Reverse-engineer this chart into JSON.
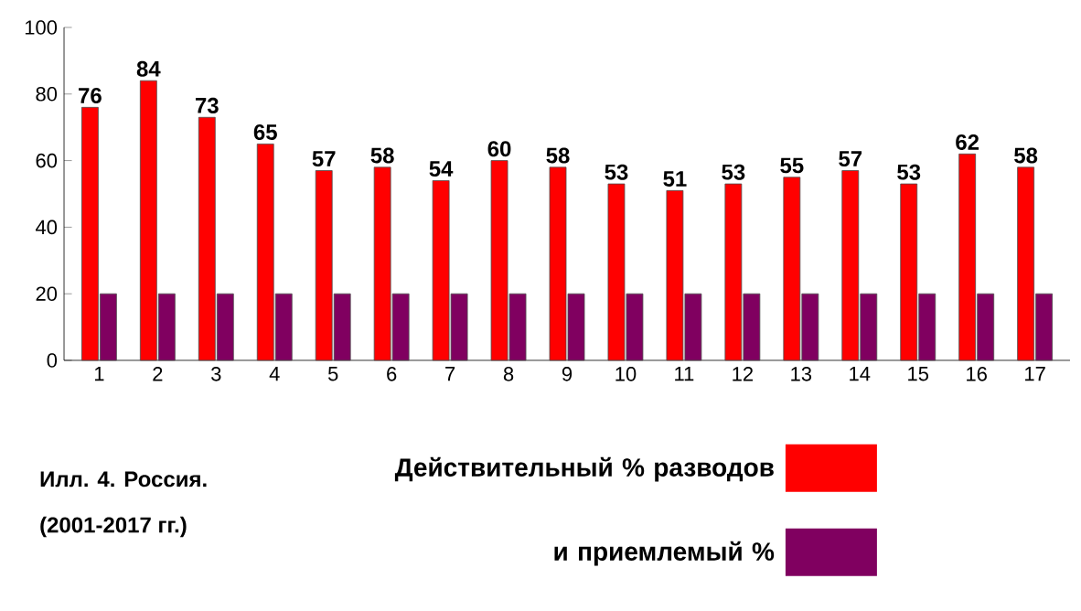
{
  "chart_data": {
    "type": "bar",
    "categories": [
      "1",
      "2",
      "3",
      "4",
      "5",
      "6",
      "7",
      "8",
      "9",
      "10",
      "11",
      "12",
      "13",
      "14",
      "15",
      "16",
      "17"
    ],
    "series": [
      {
        "name": "Действительный % разводов",
        "color": "#ff0000",
        "values": [
          76,
          84,
          73,
          65,
          57,
          58,
          54,
          60,
          58,
          53,
          51,
          53,
          55,
          57,
          53,
          62,
          58
        ],
        "value_labels": [
          "76",
          "84",
          "73",
          "65",
          "57",
          "58",
          "54",
          "60",
          "58",
          "53",
          "51",
          "53",
          "55",
          "57",
          "53",
          "62",
          "58"
        ]
      },
      {
        "name": "и приемлемый %",
        "color": "#800060",
        "values": [
          20,
          20,
          20,
          20,
          20,
          20,
          20,
          20,
          20,
          20,
          20,
          20,
          20,
          20,
          20,
          20,
          20
        ]
      }
    ],
    "ylim": [
      0,
      100
    ],
    "yticks": [
      0,
      20,
      40,
      60,
      80,
      100
    ],
    "grid": false,
    "legend": "bottom",
    "annotations": [
      "Илл. 4. Россия.",
      "(2001-2017 гг.)"
    ]
  }
}
